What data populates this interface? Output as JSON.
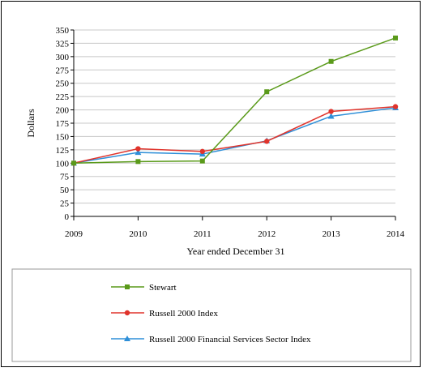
{
  "chart_data": {
    "type": "line",
    "x": [
      "2009",
      "2010",
      "2011",
      "2012",
      "2013",
      "2014"
    ],
    "xlabel": "Year ended December 31",
    "ylabel": "Dollars",
    "ylim": [
      0,
      350
    ],
    "yticks": [
      "0",
      "25",
      "50",
      "75",
      "100",
      "125",
      "150",
      "175",
      "200",
      "225",
      "250",
      "275",
      "300",
      "325",
      "350"
    ],
    "grid": true,
    "legend_position": "bottom",
    "series": [
      {
        "name": "Stewart",
        "color": "#5a9a1a",
        "marker": "square",
        "values": [
          100,
          103,
          104,
          234,
          291,
          335
        ]
      },
      {
        "name": "Russell 2000 Index",
        "color": "#e0342c",
        "marker": "circle",
        "values": [
          100,
          127,
          122,
          141,
          197,
          206
        ]
      },
      {
        "name": "Russell 2000 Financial Services Sector Index",
        "color": "#2e8fd8",
        "marker": "triangle",
        "values": [
          100,
          120,
          117,
          142,
          188,
          204
        ]
      }
    ]
  }
}
